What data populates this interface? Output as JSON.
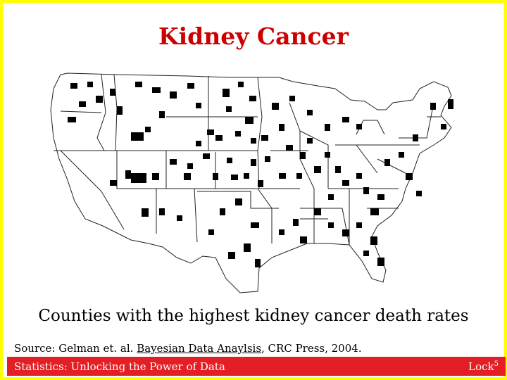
{
  "title": "Kidney Cancer",
  "map": {
    "region": "Contiguous United States",
    "fill_color": "#000000",
    "outline_color": "#222222",
    "counties_highlighted": [
      "WA-N1",
      "WA-E1",
      "OR-C1",
      "OR-E1",
      "ID-N1",
      "ID-C1",
      "MT-N1",
      "MT-N2",
      "MT-N3",
      "MT-C1",
      "MT-E1",
      "ND-1",
      "ND-2",
      "ND-3",
      "ND-4",
      "ND-5",
      "SD-1",
      "SD-2",
      "SD-3",
      "WY-1",
      "WY-2",
      "NV-1",
      "NV-2",
      "UT-1",
      "UT-2",
      "CO-1",
      "CO-2",
      "CA-1",
      "AZ-1",
      "NM-1",
      "NM-2",
      "NE-1",
      "NE-2",
      "NE-3",
      "KS-1",
      "KS-2",
      "OK-1",
      "TX-1",
      "TX-2",
      "TX-3",
      "TX-4",
      "TX-5",
      "TX-6",
      "MN-1",
      "MN-2",
      "MN-3",
      "IA-1",
      "IA-2",
      "MO-1",
      "MO-2",
      "AR-1",
      "AR-2",
      "LA-1",
      "LA-2",
      "WI-1",
      "WI-2",
      "IL-1",
      "IL-2",
      "IL-3",
      "MI-1",
      "MI-2",
      "IN-1",
      "OH-1",
      "OH-2",
      "KY-1",
      "KY-2",
      "TN-1",
      "TN-2",
      "MS-1",
      "MS-2",
      "AL-1",
      "AL-2",
      "GA-1",
      "GA-2",
      "GA-3",
      "FL-1",
      "FL-2",
      "SC-1",
      "NC-1",
      "VA-1",
      "VA-2",
      "WV-1",
      "PA-1",
      "NY-1",
      "NY-2",
      "ME-1",
      "VT-1",
      "NH-1",
      "MD-1"
    ]
  },
  "caption": "Counties with the highest kidney cancer death rates",
  "source": {
    "prefix": "Source: Gelman et. al. ",
    "book": "Bayesian Data Anaylsis",
    "suffix": ", CRC Press, 2004."
  },
  "footer": {
    "left": "Statistics: Unlocking the Power of Data",
    "right_base": "Lock",
    "right_sup": "5"
  },
  "colors": {
    "border": "#ffff00",
    "title": "#cc0000",
    "footer_bg": "#e31e24",
    "footer_text": "#ffffff"
  }
}
